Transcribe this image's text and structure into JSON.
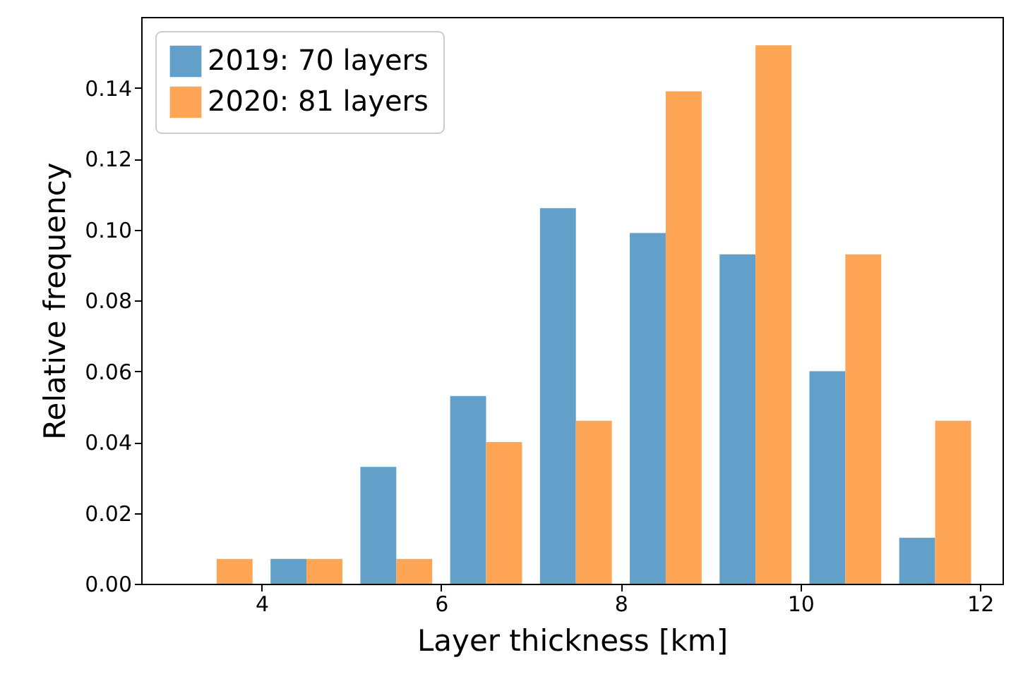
{
  "chart_data": {
    "type": "histogram",
    "xlabel": "Layer thickness [km]",
    "ylabel": "Relative frequency",
    "bins": [
      3,
      4,
      5,
      6,
      7,
      8,
      9,
      10,
      11,
      12
    ],
    "series": [
      {
        "name": "2019: 70 layers",
        "color": "#62a0ca",
        "values": [
          0,
          0.007,
          0.033,
          0.053,
          0.106,
          0.099,
          0.093,
          0.06,
          0.013
        ]
      },
      {
        "name": "2020: 81 layers",
        "color": "#ffa556",
        "values": [
          0.007,
          0.007,
          0.007,
          0.04,
          0.046,
          0.139,
          0.152,
          0.093,
          0.046
        ]
      }
    ],
    "xlim": [
      2.66,
      12.25
    ],
    "ylim": [
      0,
      0.16
    ],
    "xticks": [
      4,
      6,
      8,
      10,
      12
    ],
    "yticks": [
      {
        "value": 0,
        "label": "0.00"
      },
      {
        "value": 0.02,
        "label": "0.02"
      },
      {
        "value": 0.04,
        "label": "0.04"
      },
      {
        "value": 0.06,
        "label": "0.06"
      },
      {
        "value": 0.08,
        "label": "0.08"
      },
      {
        "value": 0.1,
        "label": "0.10"
      },
      {
        "value": 0.12,
        "label": "0.12"
      },
      {
        "value": 0.14,
        "label": "0.14"
      }
    ],
    "legend": "top left"
  }
}
